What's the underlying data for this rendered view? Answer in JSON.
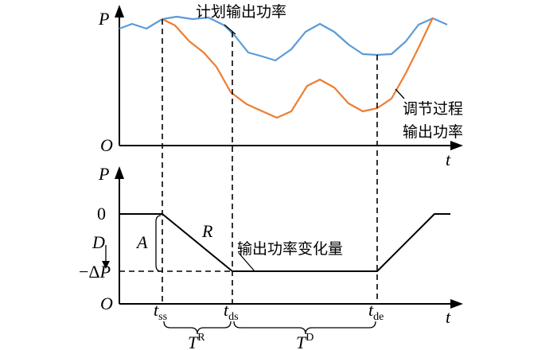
{
  "top_chart": {
    "y_label": "P",
    "origin_label": "O",
    "x_label": "t",
    "planned_label": "计划输出功率",
    "regulated_label_line1": "调节过程",
    "regulated_label_line2": "输出功率",
    "planned_color": "#5b9bd5",
    "regulated_color": "#ed7d31"
  },
  "bottom_chart": {
    "y_label": "P",
    "origin_label": "O",
    "x_label": "t",
    "zero_label": "0",
    "neg_prefix": "−Δ",
    "neg_var": "P",
    "d_label": "D",
    "a_label": "A",
    "r_label": "R",
    "change_label": "输出功率变化量"
  },
  "time_marks": {
    "t_ss": {
      "base": "t",
      "sub": "ss"
    },
    "t_ds": {
      "base": "t",
      "sub": "ds"
    },
    "t_de": {
      "base": "t",
      "sub": "de"
    }
  },
  "durations": {
    "TR": {
      "base": "T",
      "sup": "R"
    },
    "TD": {
      "base": "T",
      "sup": "D"
    }
  }
}
